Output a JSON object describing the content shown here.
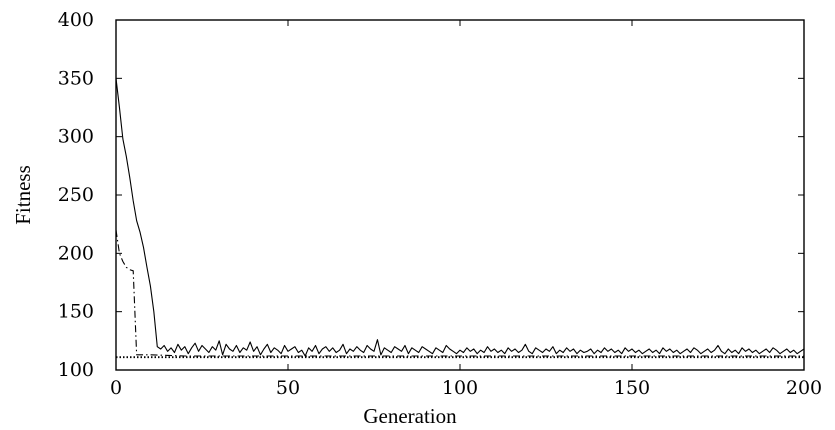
{
  "chart_data": {
    "type": "line",
    "title": "",
    "xlabel": "Generation",
    "ylabel": "Fitness",
    "xlim": [
      0,
      200
    ],
    "ylim": [
      100,
      400
    ],
    "xticks": [
      "0",
      "50",
      "100",
      "150",
      "200"
    ],
    "yticks": [
      "100",
      "150",
      "200",
      "250",
      "300",
      "350",
      "400"
    ],
    "grid": false,
    "legend": "none",
    "series": [
      {
        "style": "solid",
        "color": "#000000",
        "x": [
          0,
          1,
          2,
          3,
          4,
          5,
          6,
          7,
          8,
          9,
          10,
          11,
          12,
          13,
          14,
          15,
          16,
          17,
          18,
          19,
          20,
          21,
          22,
          23,
          24,
          25,
          26,
          27,
          28,
          29,
          30,
          31,
          32,
          33,
          34,
          35,
          36,
          37,
          38,
          39,
          40,
          41,
          42,
          43,
          44,
          45,
          46,
          47,
          48,
          49,
          50,
          51,
          52,
          53,
          54,
          55,
          56,
          57,
          58,
          59,
          60,
          61,
          62,
          63,
          64,
          65,
          66,
          67,
          68,
          69,
          70,
          71,
          72,
          73,
          74,
          75,
          76,
          77,
          78,
          79,
          80,
          81,
          82,
          83,
          84,
          85,
          86,
          87,
          88,
          89,
          90,
          91,
          92,
          93,
          94,
          95,
          96,
          97,
          98,
          99,
          100,
          101,
          102,
          103,
          104,
          105,
          106,
          107,
          108,
          109,
          110,
          111,
          112,
          113,
          114,
          115,
          116,
          117,
          118,
          119,
          120,
          121,
          122,
          123,
          124,
          125,
          126,
          127,
          128,
          129,
          130,
          131,
          132,
          133,
          134,
          135,
          136,
          137,
          138,
          139,
          140,
          141,
          142,
          143,
          144,
          145,
          146,
          147,
          148,
          149,
          150,
          151,
          152,
          153,
          154,
          155,
          156,
          157,
          158,
          159,
          160,
          161,
          162,
          163,
          164,
          165,
          166,
          167,
          168,
          169,
          170,
          171,
          172,
          173,
          174,
          175,
          176,
          177,
          178,
          179,
          180,
          181,
          182,
          183,
          184,
          185,
          186,
          187,
          188,
          189,
          190,
          191,
          192,
          193,
          194,
          195,
          196,
          197,
          198,
          199,
          200
        ],
        "y": [
          350,
          325,
          298,
          283,
          265,
          245,
          228,
          218,
          205,
          188,
          172,
          150,
          120,
          118,
          121,
          116,
          119,
          115,
          122,
          117,
          120,
          114,
          119,
          123,
          116,
          121,
          118,
          115,
          120,
          117,
          125,
          113,
          122,
          118,
          116,
          121,
          115,
          119,
          117,
          124,
          116,
          120,
          113,
          118,
          122,
          115,
          119,
          117,
          114,
          121,
          116,
          118,
          120,
          115,
          117,
          112,
          119,
          116,
          121,
          114,
          118,
          120,
          116,
          119,
          115,
          117,
          122,
          114,
          118,
          116,
          120,
          117,
          115,
          121,
          118,
          116,
          126,
          113,
          119,
          117,
          115,
          120,
          118,
          116,
          121,
          114,
          119,
          117,
          115,
          120,
          118,
          116,
          114,
          119,
          117,
          115,
          121,
          118,
          116,
          114,
          117,
          115,
          119,
          116,
          118,
          114,
          117,
          115,
          120,
          116,
          118,
          115,
          117,
          114,
          119,
          116,
          118,
          115,
          117,
          122,
          116,
          114,
          119,
          117,
          115,
          118,
          116,
          120,
          114,
          117,
          115,
          119,
          116,
          118,
          114,
          117,
          115,
          116,
          118,
          114,
          117,
          115,
          119,
          116,
          118,
          115,
          117,
          114,
          119,
          116,
          118,
          115,
          117,
          114,
          116,
          118,
          115,
          117,
          114,
          119,
          116,
          118,
          115,
          117,
          114,
          116,
          118,
          115,
          119,
          117,
          114,
          116,
          118,
          115,
          117,
          121,
          116,
          114,
          118,
          115,
          117,
          114,
          119,
          116,
          118,
          115,
          117,
          114,
          116,
          118,
          115,
          119,
          117,
          114,
          116,
          118,
          115,
          117,
          114,
          116,
          118
        ]
      },
      {
        "style": "dash-dot",
        "color": "#000000",
        "x": [
          0,
          1,
          2,
          3,
          4,
          5,
          6,
          7,
          10,
          20,
          30,
          40,
          50,
          60,
          70,
          80,
          90,
          100,
          110,
          120,
          130,
          140,
          150,
          160,
          170,
          180,
          190,
          200
        ],
        "y": [
          220,
          200,
          193,
          188,
          186,
          185,
          113,
          113,
          113,
          112,
          112,
          112,
          112,
          112,
          112,
          112,
          112,
          112,
          112,
          112,
          112,
          112,
          112,
          112,
          112,
          112,
          112,
          112
        ]
      },
      {
        "style": "dotted",
        "color": "#000000",
        "x": [
          0,
          5,
          6,
          10,
          20,
          50,
          100,
          150,
          200
        ],
        "y": [
          111,
          111,
          111,
          111,
          111,
          111,
          111,
          111,
          111
        ]
      }
    ]
  }
}
